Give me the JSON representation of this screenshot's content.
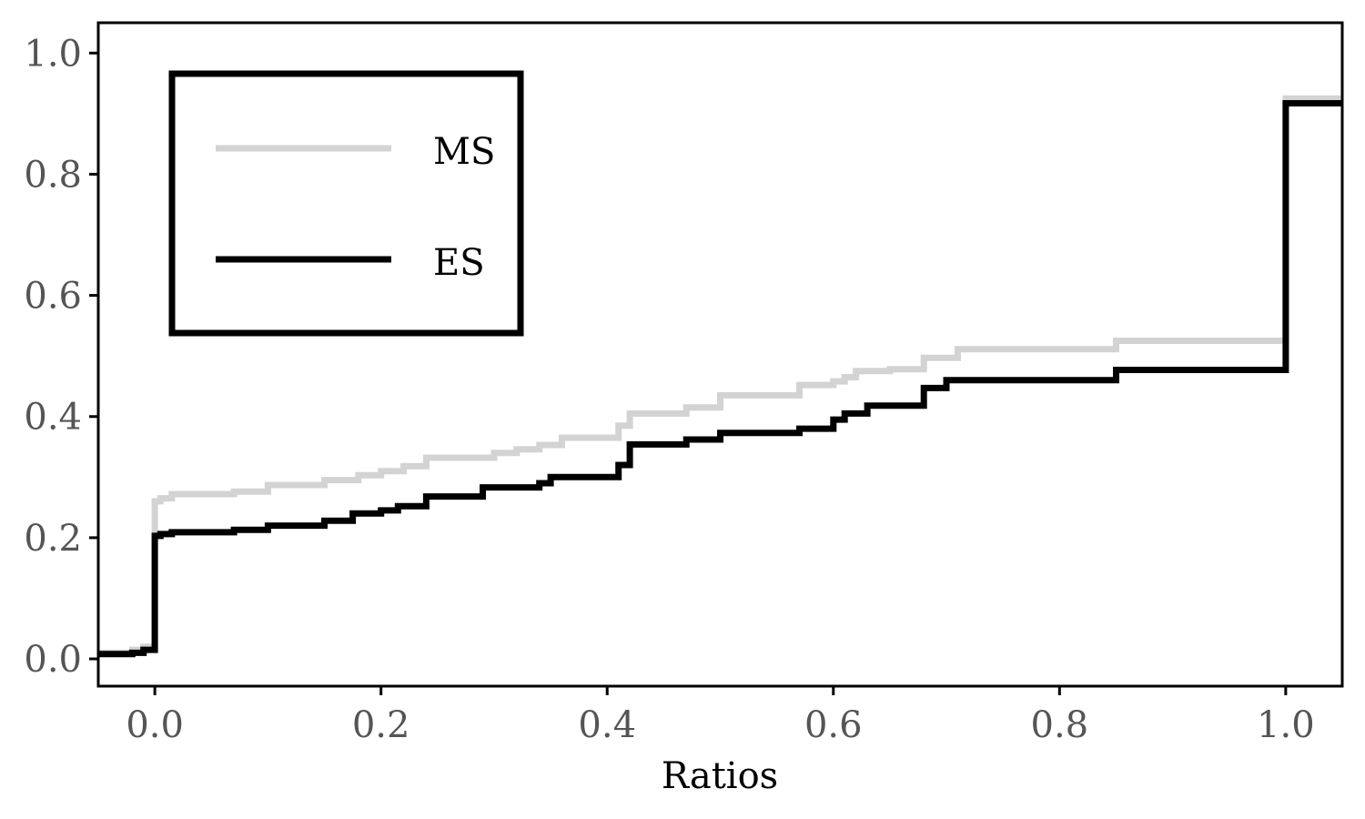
{
  "chart_data": {
    "type": "line",
    "title": "",
    "xlabel": "Ratios",
    "ylabel": "",
    "xlim": [
      -0.05,
      1.05
    ],
    "ylim": [
      -0.045,
      1.05
    ],
    "xticks": [
      0.0,
      0.2,
      0.4,
      0.6,
      0.8,
      1.0
    ],
    "xtick_labels": [
      "0.0",
      "0.2",
      "0.4",
      "0.6",
      "0.8",
      "1.0"
    ],
    "yticks": [
      0.0,
      0.2,
      0.4,
      0.6,
      0.8,
      1.0
    ],
    "ytick_labels": [
      "0.0",
      "0.2",
      "0.4",
      "0.6",
      "0.8",
      "1.0"
    ],
    "grid": false,
    "legend_position": "top-left",
    "step": true,
    "series": [
      {
        "name": "MS",
        "color": "#d3d3d3",
        "x": [
          -0.05,
          -0.03,
          -0.02,
          -0.01,
          0.0,
          0.0,
          0.005,
          0.015,
          0.07,
          0.1,
          0.15,
          0.18,
          0.2,
          0.22,
          0.24,
          0.3,
          0.32,
          0.34,
          0.36,
          0.41,
          0.42,
          0.47,
          0.5,
          0.57,
          0.6,
          0.61,
          0.62,
          0.65,
          0.68,
          0.71,
          0.85,
          1.0,
          1.05
        ],
        "y": [
          0.01,
          0.01,
          0.015,
          0.02,
          0.025,
          0.26,
          0.265,
          0.272,
          0.276,
          0.287,
          0.295,
          0.303,
          0.31,
          0.318,
          0.332,
          0.34,
          0.346,
          0.353,
          0.365,
          0.385,
          0.405,
          0.415,
          0.435,
          0.452,
          0.458,
          0.465,
          0.475,
          0.478,
          0.497,
          0.511,
          0.525,
          0.925,
          0.925
        ]
      },
      {
        "name": "ES",
        "color": "#000000",
        "x": [
          -0.05,
          -0.02,
          -0.01,
          0.0,
          0.0,
          0.005,
          0.015,
          0.07,
          0.1,
          0.15,
          0.175,
          0.2,
          0.215,
          0.24,
          0.29,
          0.34,
          0.35,
          0.41,
          0.42,
          0.47,
          0.5,
          0.57,
          0.6,
          0.61,
          0.63,
          0.68,
          0.7,
          0.85,
          1.0,
          1.05
        ],
        "y": [
          0.008,
          0.01,
          0.015,
          0.02,
          0.203,
          0.206,
          0.209,
          0.213,
          0.22,
          0.228,
          0.24,
          0.245,
          0.252,
          0.268,
          0.283,
          0.29,
          0.3,
          0.32,
          0.354,
          0.362,
          0.373,
          0.38,
          0.395,
          0.405,
          0.418,
          0.447,
          0.46,
          0.477,
          0.917,
          0.917
        ]
      }
    ]
  }
}
